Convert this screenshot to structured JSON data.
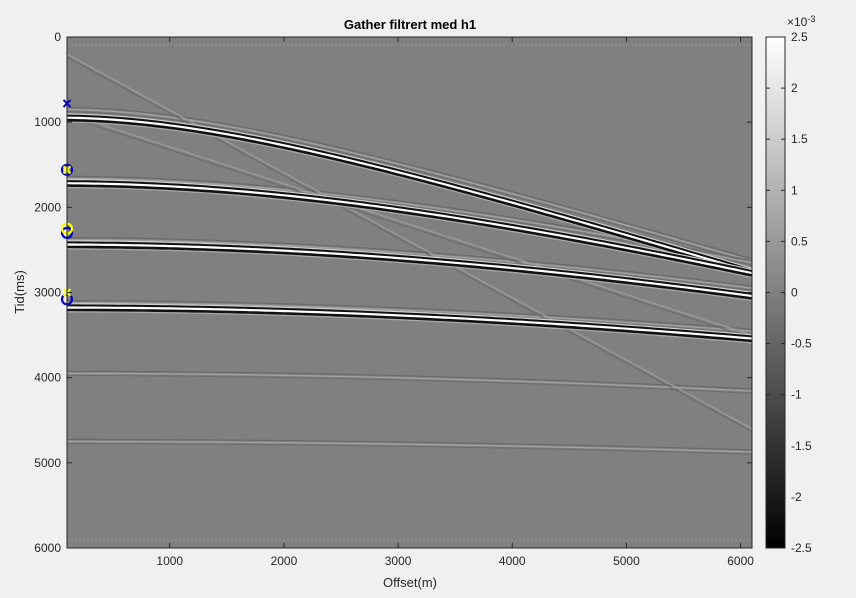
{
  "chart_data": {
    "type": "heatmap",
    "title": "Gather filtrert med h1",
    "xlabel": "Offset(m)",
    "ylabel": "Tid(ms)",
    "xlim": [
      100,
      6100
    ],
    "ylim": [
      0,
      6000
    ],
    "y_reversed": true,
    "x_ticks": [
      "1000",
      "2000",
      "3000",
      "4000",
      "5000",
      "6000"
    ],
    "y_ticks": [
      "0",
      "1000",
      "2000",
      "3000",
      "4000",
      "5000",
      "6000"
    ],
    "colorbar": {
      "multiplier": "×10-3",
      "exponent_label": "-3",
      "base_label": "×10",
      "ticks": [
        "2.5",
        "2",
        "1.5",
        "1",
        "0.5",
        "0",
        "-0.5",
        "-1",
        "-1.5",
        "-2",
        "-2.5"
      ],
      "range": [
        -2.5,
        2.5
      ],
      "colormap": "gray"
    },
    "strong_events": [
      {
        "t0": 950,
        "v": 2350
      },
      {
        "t0": 1720,
        "v": 2800
      },
      {
        "t0": 2440,
        "v": 3350
      },
      {
        "t0": 3180,
        "v": 3900
      }
    ],
    "weak_events": [
      {
        "t0": 850,
        "v": 2450
      },
      {
        "t0": 1660,
        "v": 2950
      },
      {
        "t0": 2380,
        "v": 3500
      },
      {
        "t0": 3120,
        "v": 4100
      },
      {
        "t0": 3950,
        "v": 4700
      },
      {
        "t0": 4750,
        "v": 5600
      }
    ],
    "linear_events": [
      {
        "t_start": 200,
        "x_start": 100,
        "t_end": 4600,
        "x_end": 6100
      },
      {
        "t_start": 900,
        "x_start": 100,
        "t_end": 3500,
        "x_end": 6100
      }
    ],
    "markers": [
      {
        "x": 100,
        "y": 780,
        "symbol": "x",
        "color": "#0000cc"
      },
      {
        "x": 100,
        "y": 1560,
        "symbol": "o",
        "color": "#0000cc"
      },
      {
        "x": 100,
        "y": 1560,
        "symbol": "x",
        "color": "#ffff00"
      },
      {
        "x": 100,
        "y": 2300,
        "symbol": "o",
        "color": "#0000cc"
      },
      {
        "x": 100,
        "y": 2250,
        "symbol": "o",
        "color": "#ffff00"
      },
      {
        "x": 100,
        "y": 3080,
        "symbol": "o",
        "color": "#0000cc"
      },
      {
        "x": 100,
        "y": 3000,
        "symbol": "x",
        "color": "#ffff00"
      }
    ]
  }
}
